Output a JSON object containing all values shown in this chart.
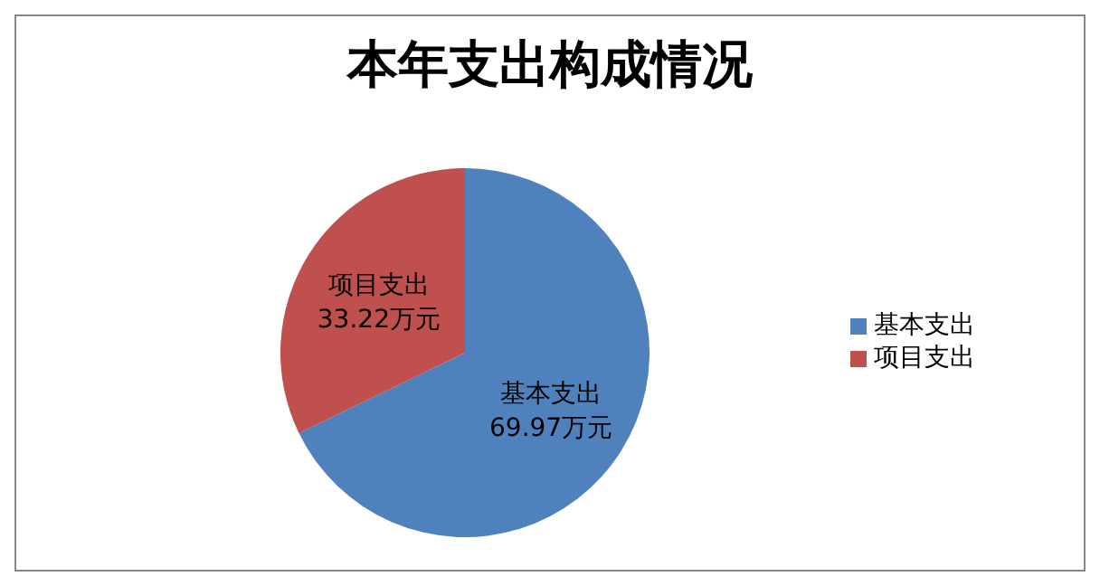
{
  "chart_data": {
    "type": "pie",
    "title": "本年支出构成情况",
    "categories": [
      "基本支出",
      "项目支出"
    ],
    "values": [
      69.97,
      33.22
    ],
    "colors": [
      "#4f81bd",
      "#c0504d"
    ],
    "value_labels": [
      "69.97万元",
      "33.22万元"
    ],
    "legend": "right"
  }
}
